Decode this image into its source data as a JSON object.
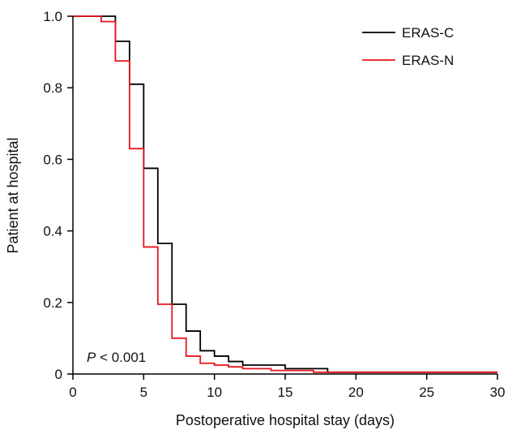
{
  "chart_data": {
    "type": "line",
    "step": true,
    "title": "",
    "xlabel": "Postoperative hospital stay (days)",
    "ylabel": "Patient at hospital",
    "xlim": [
      0,
      30
    ],
    "ylim": [
      0,
      1.0
    ],
    "x_ticks": [
      0,
      5,
      10,
      15,
      20,
      25,
      30
    ],
    "x_tick_labels": [
      "0",
      "5",
      "10",
      "15",
      "20",
      "25",
      "30"
    ],
    "y_ticks": [
      0,
      0.2,
      0.4,
      0.6,
      0.8,
      1.0
    ],
    "y_tick_labels": [
      "0",
      "0.2",
      "0.4",
      "0.6",
      "0.8",
      "1.0"
    ],
    "grid": false,
    "legend_position": "top-right",
    "annotation": {
      "italic": "P",
      "text": " < 0.001"
    },
    "series": [
      {
        "name": "ERAS-C",
        "color": "#000000",
        "x": [
          0,
          3,
          4,
          5,
          6,
          7,
          8,
          9,
          10,
          11,
          12,
          15,
          18,
          30
        ],
        "y": [
          1.0,
          0.93,
          0.81,
          0.575,
          0.365,
          0.195,
          0.12,
          0.065,
          0.05,
          0.035,
          0.025,
          0.015,
          0.005,
          0.005
        ]
      },
      {
        "name": "ERAS-N",
        "color": "#e8141c",
        "x": [
          0,
          2,
          3,
          4,
          5,
          6,
          7,
          8,
          9,
          10,
          11,
          12,
          14,
          17,
          30
        ],
        "y": [
          1.0,
          0.985,
          0.875,
          0.63,
          0.355,
          0.195,
          0.1,
          0.05,
          0.03,
          0.025,
          0.02,
          0.015,
          0.01,
          0.005,
          0.005
        ]
      }
    ]
  }
}
